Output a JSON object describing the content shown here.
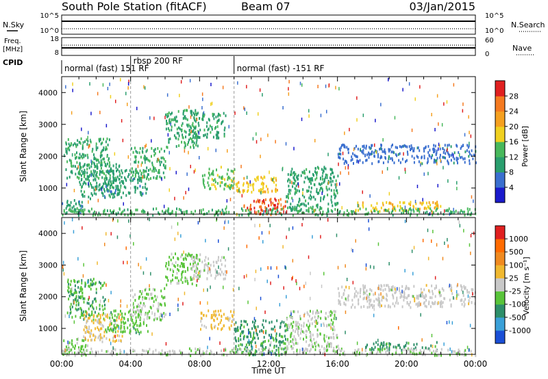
{
  "header": {
    "station": "South Pole Station (fitACF)",
    "beam": "Beam 07",
    "date": "03/Jan/2015"
  },
  "strip": {
    "left_labels": {
      "nsky": "N.Sky",
      "freq": "Freq.",
      "mhz": "[MHz]",
      "cpid": "CPID",
      "nsky_top": "10^5",
      "nsky_bottom": "10^0",
      "freq_top": "18",
      "freq_bottom": "8"
    },
    "right_labels": {
      "nsearch": "N.Search",
      "nave": "Nave",
      "nsearch_top": "10^5",
      "nsearch_bottom": "10^0",
      "nave_top": "60",
      "nave_bottom": "0"
    },
    "cpid_segments": [
      {
        "label": "normal (fast) 151 RF",
        "start_hour": 0,
        "end_hour": 4
      },
      {
        "label": "rbsp 200 RF",
        "start_hour": 4,
        "end_hour": 10
      },
      {
        "label": "normal (fast) -151 RF",
        "start_hour": 10,
        "end_hour": 24
      }
    ]
  },
  "colors": {
    "power_scale": [
      "#1a1acc",
      "#3a6fcf",
      "#2a9e6e",
      "#48b85c",
      "#f0d020",
      "#f5a020",
      "#f57a20",
      "#e02020"
    ],
    "velocity_scale": [
      "#1a4fd6",
      "#3aa0d8",
      "#2e8f6a",
      "#59c43a",
      "#c8c8c8",
      "#f0b830",
      "#f08a20",
      "#ff6b00",
      "#e02020"
    ]
  },
  "chart_data": [
    {
      "type": "heatmap",
      "panel": "power",
      "xlabel": "",
      "ylabel": "Slant Range [km]",
      "xlim": [
        0,
        24
      ],
      "ylim": [
        180,
        4500
      ],
      "yticks": [
        1000,
        2000,
        3000,
        4000
      ],
      "colorbar": {
        "label": "Power [dB]",
        "ticks": [
          "28",
          "24",
          "20",
          "16",
          "12",
          "8",
          "4"
        ],
        "range": [
          0,
          30
        ]
      },
      "echo_regions": [
        {
          "x": [
            0.0,
            1.2
          ],
          "y": [
            180,
            700
          ],
          "value": 8
        },
        {
          "x": [
            0.2,
            2.8
          ],
          "y": [
            1300,
            2600
          ],
          "value": 11
        },
        {
          "x": [
            1.0,
            3.5
          ],
          "y": [
            700,
            1800
          ],
          "value": 10
        },
        {
          "x": [
            2.5,
            5.0
          ],
          "y": [
            800,
            1600
          ],
          "value": 9
        },
        {
          "x": [
            4.0,
            6.0
          ],
          "y": [
            1300,
            2300
          ],
          "value": 12
        },
        {
          "x": [
            6.0,
            8.0
          ],
          "y": [
            2300,
            3500
          ],
          "value": 11
        },
        {
          "x": [
            7.5,
            9.5
          ],
          "y": [
            2600,
            3400
          ],
          "value": 10
        },
        {
          "x": [
            8.0,
            10.0
          ],
          "y": [
            1000,
            1700
          ],
          "value": 14
        },
        {
          "x": [
            9.8,
            12.5
          ],
          "y": [
            900,
            1400
          ],
          "value": 18
        },
        {
          "x": [
            10.5,
            13.0
          ],
          "y": [
            200,
            700
          ],
          "value": 26
        },
        {
          "x": [
            13.0,
            16.0
          ],
          "y": [
            300,
            1700
          ],
          "value": 10
        },
        {
          "x": [
            16.0,
            24.0
          ],
          "y": [
            1800,
            2400
          ],
          "value": 6
        },
        {
          "x": [
            17.0,
            22.0
          ],
          "y": [
            300,
            600
          ],
          "value": 18
        },
        {
          "x": [
            0.0,
            24.0
          ],
          "y": [
            180,
            400
          ],
          "value": 12
        }
      ]
    },
    {
      "type": "heatmap",
      "panel": "velocity",
      "xlabel": "Time UT",
      "ylabel": "Slant Range [km]",
      "xlim": [
        0,
        24
      ],
      "ylim": [
        180,
        4500
      ],
      "xticks": [
        "00:00",
        "04:00",
        "08:00",
        "12:00",
        "16:00",
        "20:00",
        "00:00"
      ],
      "yticks": [
        1000,
        2000,
        3000,
        4000
      ],
      "colorbar": {
        "label": "Velocity [m s⁻¹]",
        "ticks": [
          "1000",
          "500",
          "100",
          "25",
          "-25",
          "-100",
          "-500",
          "-1000"
        ],
        "range": [
          -1000,
          1000
        ]
      },
      "echo_regions": [
        {
          "x": [
            0.0,
            1.5
          ],
          "y": [
            180,
            700
          ],
          "value": -200
        },
        {
          "x": [
            0.3,
            2.5
          ],
          "y": [
            1300,
            2600
          ],
          "value": -300
        },
        {
          "x": [
            1.2,
            3.5
          ],
          "y": [
            600,
            1500
          ],
          "value": 150
        },
        {
          "x": [
            2.5,
            5.0
          ],
          "y": [
            900,
            1600
          ],
          "value": -250
        },
        {
          "x": [
            4.0,
            6.0
          ],
          "y": [
            1300,
            2300
          ],
          "value": -150
        },
        {
          "x": [
            6.0,
            8.0
          ],
          "y": [
            2400,
            3400
          ],
          "value": -200
        },
        {
          "x": [
            7.5,
            9.5
          ],
          "y": [
            2600,
            3300
          ],
          "value": 0
        },
        {
          "x": [
            8.0,
            10.0
          ],
          "y": [
            1000,
            1600
          ],
          "value": 200
        },
        {
          "x": [
            10.0,
            13.0
          ],
          "y": [
            200,
            1300
          ],
          "value": -400
        },
        {
          "x": [
            13.0,
            16.0
          ],
          "y": [
            300,
            1600
          ],
          "value": -80
        },
        {
          "x": [
            16.0,
            24.0
          ],
          "y": [
            1700,
            2400
          ],
          "value": 0
        },
        {
          "x": [
            17.5,
            22.0
          ],
          "y": [
            350,
            600
          ],
          "value": -400
        },
        {
          "x": [
            0.0,
            24.0
          ],
          "y": [
            180,
            400
          ],
          "value": -50
        }
      ]
    }
  ]
}
